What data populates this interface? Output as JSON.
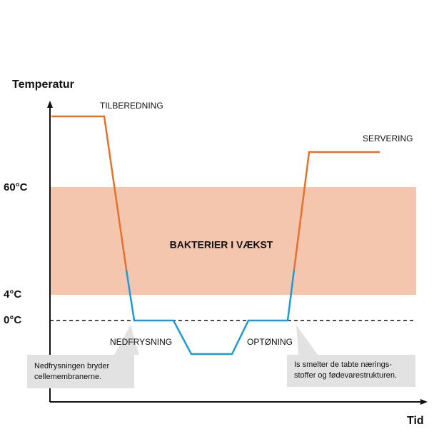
{
  "axis": {
    "y_title": "Temperatur",
    "x_title": "Tid",
    "levels": [
      "60°C",
      "4°C",
      "0°C"
    ]
  },
  "zone": {
    "label": "BAKTERIER I VÆKST"
  },
  "phases": [
    "TILBEREDNING",
    "NEDFRYSNING",
    "OPTØNING",
    "SERVERING"
  ],
  "callouts": [
    {
      "lines": [
        "Nedfrysningen bryder",
        "cellemembranerne."
      ]
    },
    {
      "lines": [
        "Is smelter de tabte nærings-",
        "stoffer og fødevarestrukturen."
      ]
    }
  ]
}
